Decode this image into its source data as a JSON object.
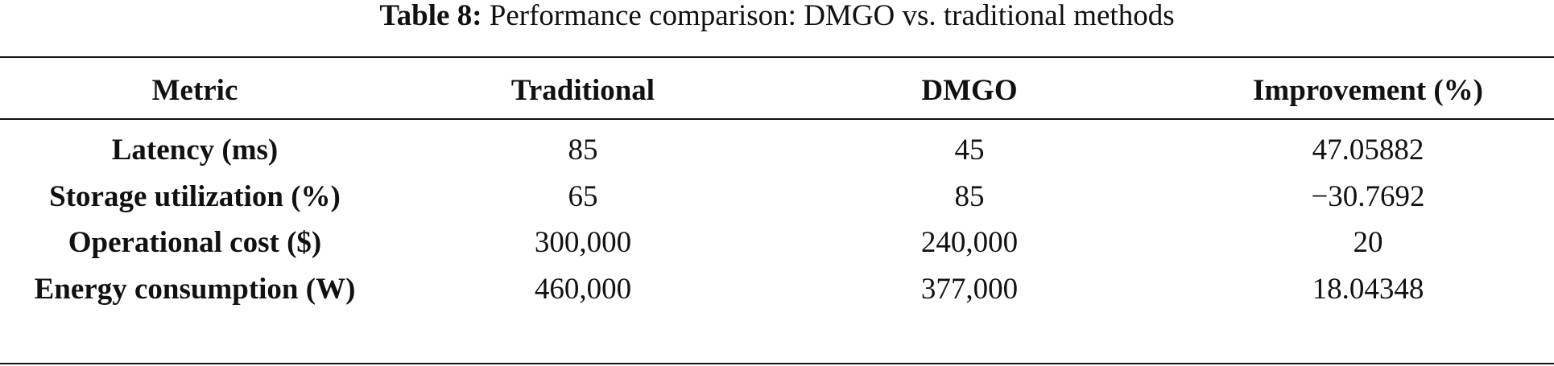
{
  "caption": {
    "label": "Table 8:",
    "text": "Performance comparison: DMGO vs. traditional methods"
  },
  "table": {
    "header": [
      "Metric",
      "Traditional",
      "DMGO",
      "Improvement (%)"
    ],
    "rows": [
      [
        "Latency (ms)",
        "85",
        "45",
        "47.05882"
      ],
      [
        "Storage utilization (%)",
        "65",
        "85",
        "−30.7692"
      ],
      [
        "Operational cost ($)",
        "300,000",
        "240,000",
        "20"
      ],
      [
        "Energy consumption (W)",
        "460,000",
        "377,000",
        "18.04348"
      ]
    ]
  }
}
